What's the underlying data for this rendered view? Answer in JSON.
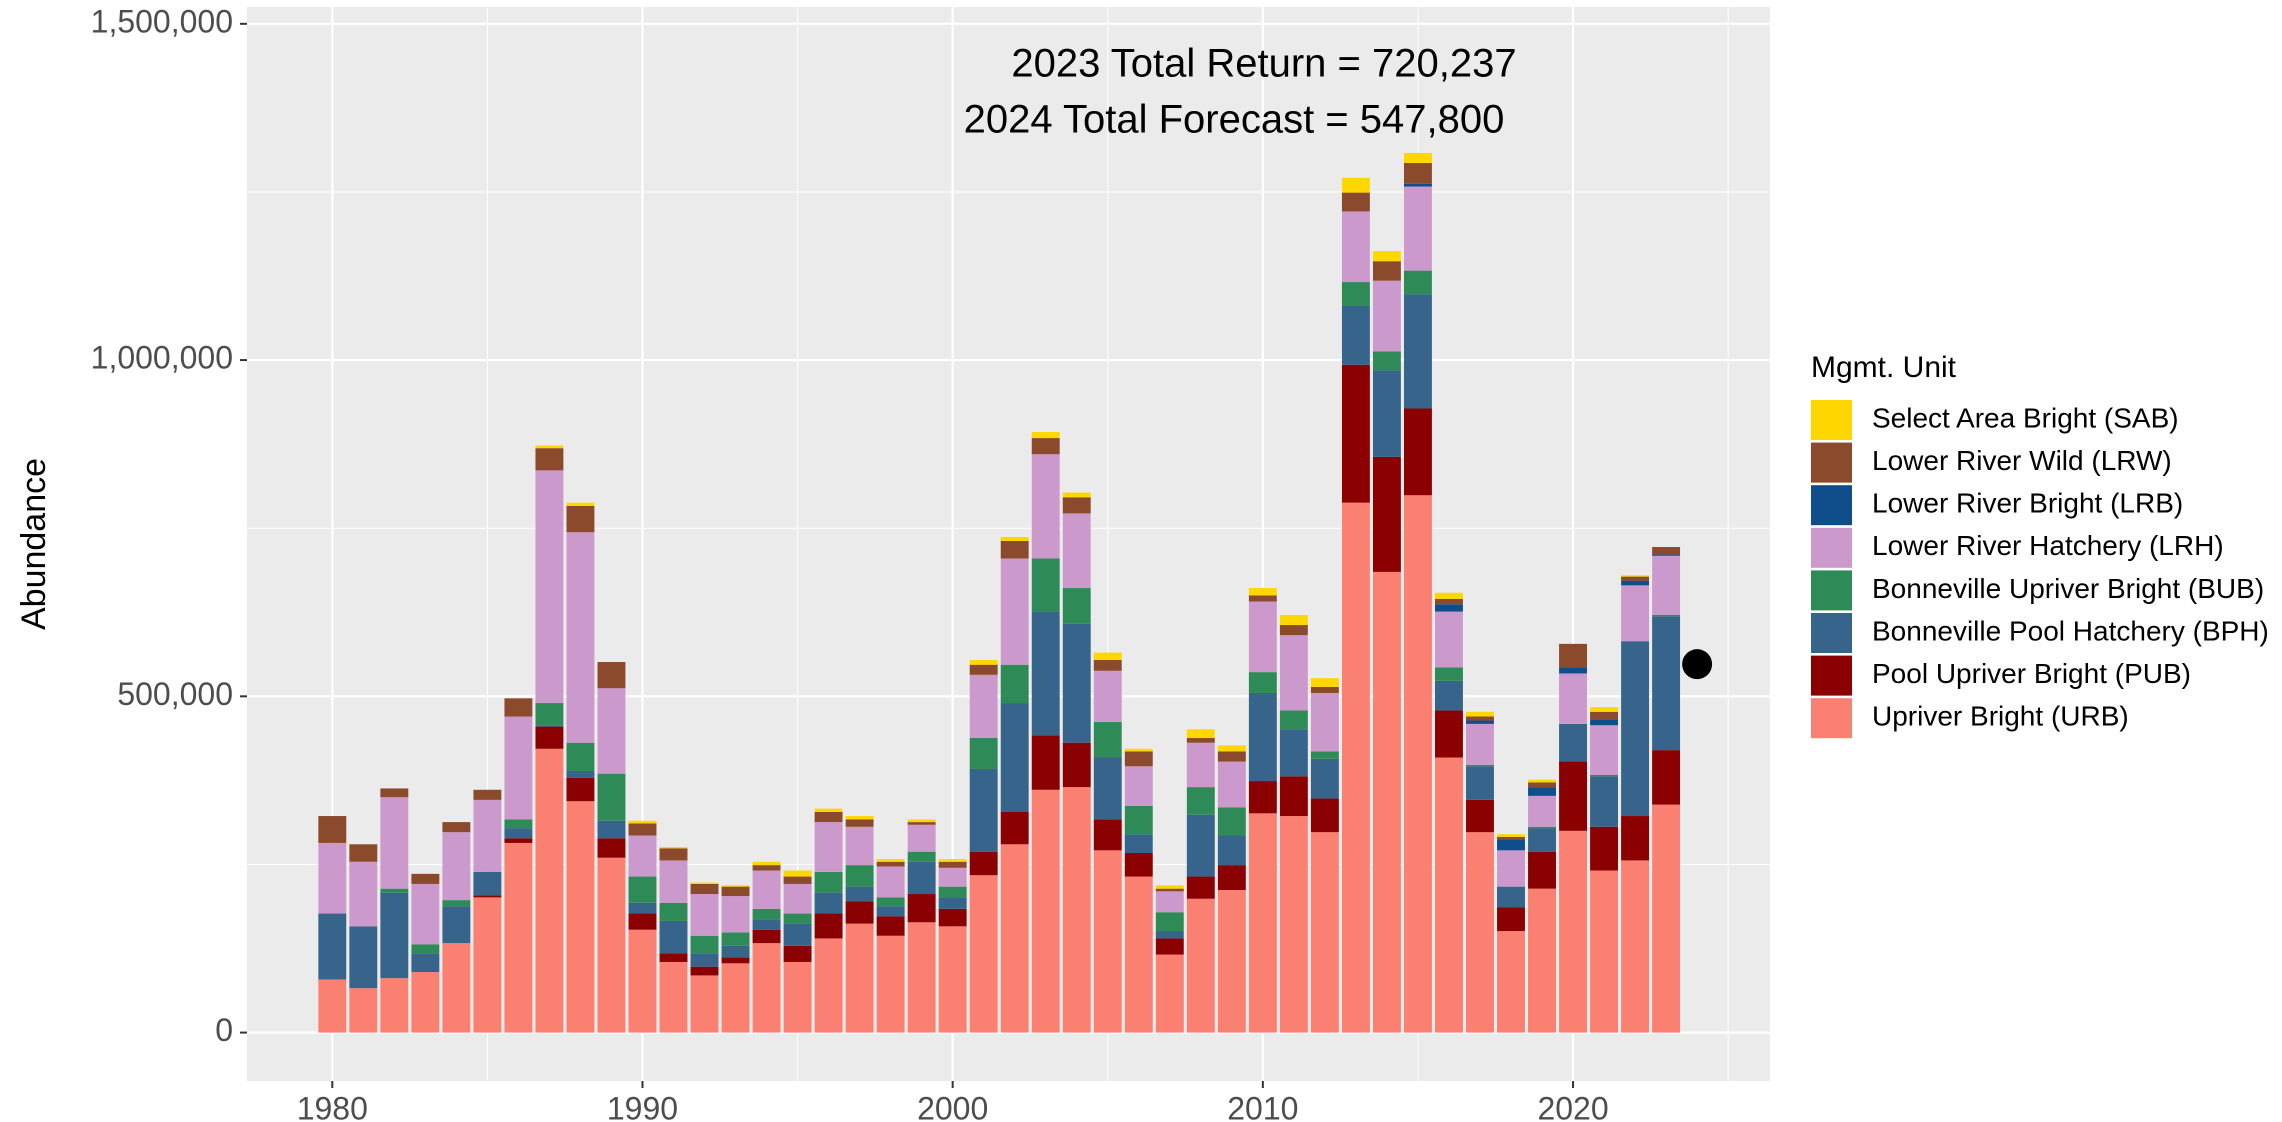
{
  "chart_data": {
    "type": "stacked_bar",
    "annotations": [
      "2023 Total Return = 720,237",
      "2024 Total Forecast = 547,800"
    ],
    "y_label": "Abundance",
    "legend_title": "Mgmt. Unit",
    "x": [
      1980,
      1981,
      1982,
      1983,
      1984,
      1985,
      1986,
      1987,
      1988,
      1989,
      1990,
      1991,
      1992,
      1993,
      1994,
      1995,
      1996,
      1997,
      1998,
      1999,
      2000,
      2001,
      2002,
      2003,
      2004,
      2005,
      2006,
      2007,
      2008,
      2009,
      2010,
      2011,
      2012,
      2013,
      2014,
      2015,
      2016,
      2017,
      2018,
      2019,
      2020,
      2021,
      2022,
      2023
    ],
    "series": [
      {
        "name": "Upriver Bright (URB)",
        "color": "#fa8072",
        "values": [
          79000,
          66000,
          81000,
          90000,
          133000,
          201000,
          282000,
          422000,
          344000,
          260000,
          153000,
          105000,
          85000,
          103000,
          133000,
          105000,
          140000,
          162000,
          144000,
          164000,
          158000,
          234000,
          280000,
          361000,
          365000,
          271000,
          232000,
          116000,
          199000,
          212000,
          326000,
          322000,
          298000,
          788000,
          685000,
          799000,
          409000,
          298000,
          151000,
          214000,
          300000,
          241000,
          256000,
          339000
        ]
      },
      {
        "name": "Pool Upriver Bright (PUB)",
        "color": "#8b0000",
        "values": [
          0,
          0,
          0,
          0,
          0,
          3000,
          7000,
          33000,
          35000,
          29000,
          24000,
          13000,
          13000,
          9000,
          20000,
          24000,
          37000,
          33000,
          29000,
          42000,
          26000,
          35000,
          48000,
          81000,
          66000,
          46000,
          35000,
          24000,
          33000,
          37000,
          48000,
          59000,
          50000,
          205000,
          171000,
          129000,
          70000,
          48000,
          35000,
          55000,
          103000,
          65000,
          66000,
          81000
        ]
      },
      {
        "name": "Bonneville Pool Hatchery (BPH)",
        "color": "#36648b",
        "values": [
          98000,
          92000,
          127000,
          28000,
          55000,
          35000,
          15000,
          2000,
          10000,
          26000,
          16000,
          48000,
          20000,
          17000,
          15000,
          33000,
          31000,
          22000,
          15000,
          48000,
          17000,
          123000,
          162000,
          184000,
          177000,
          92000,
          28000,
          11000,
          92000,
          44000,
          131000,
          70000,
          59000,
          88000,
          129000,
          170000,
          44000,
          50000,
          31000,
          35000,
          56000,
          75000,
          260000,
          199000
        ]
      },
      {
        "name": "Bonneville Upriver Bright (BUB)",
        "color": "#2e8b57",
        "values": [
          0,
          0,
          6000,
          13000,
          9000,
          0,
          13000,
          33000,
          42000,
          70000,
          39000,
          27000,
          26000,
          20000,
          16000,
          15000,
          31000,
          32000,
          13000,
          15000,
          16000,
          46000,
          57000,
          79000,
          53000,
          53000,
          42000,
          28000,
          41000,
          42000,
          31000,
          28000,
          11000,
          35000,
          28000,
          35000,
          20000,
          2000,
          0,
          2000,
          0,
          2000,
          0,
          2000
        ]
      },
      {
        "name": "Lower River Hatchery (LRH)",
        "color": "#cc99cc",
        "values": [
          105000,
          96000,
          136000,
          90000,
          101000,
          107000,
          153000,
          346000,
          313000,
          127000,
          61000,
          63000,
          62000,
          54000,
          57000,
          44000,
          74000,
          57000,
          46000,
          40000,
          28000,
          94000,
          158000,
          155000,
          111000,
          76000,
          59000,
          31000,
          66000,
          68000,
          105000,
          112000,
          87000,
          105000,
          105000,
          125000,
          83000,
          61000,
          54000,
          46000,
          75000,
          74000,
          83000,
          88000
        ]
      },
      {
        "name": "Lower River Bright (LRB)",
        "color": "#104e8b",
        "values": [
          0,
          0,
          0,
          0,
          0,
          0,
          0,
          0,
          0,
          0,
          0,
          0,
          0,
          0,
          0,
          0,
          0,
          0,
          0,
          0,
          0,
          0,
          0,
          0,
          0,
          0,
          0,
          0,
          0,
          0,
          0,
          0,
          0,
          0,
          0,
          4000,
          11000,
          5000,
          16000,
          13000,
          9000,
          9000,
          7000,
          2000
        ]
      },
      {
        "name": "Lower River Wild (LRW)",
        "color": "#8b4a2b",
        "values": [
          40000,
          26000,
          13000,
          15000,
          15000,
          15000,
          27000,
          33000,
          39000,
          39000,
          18000,
          18000,
          15000,
          14000,
          8000,
          11000,
          15000,
          11000,
          7000,
          4000,
          9000,
          15000,
          26000,
          24000,
          24000,
          16000,
          22000,
          4000,
          7000,
          15000,
          9000,
          15000,
          9000,
          28000,
          29000,
          31000,
          8000,
          6000,
          4000,
          7000,
          35000,
          11000,
          6000,
          11000
        ]
      },
      {
        "name": "Select Area Bright (SAB)",
        "color": "#ffd700",
        "values": [
          0,
          0,
          0,
          0,
          0,
          0,
          0,
          4000,
          5000,
          0,
          4000,
          2000,
          2000,
          2000,
          5000,
          9000,
          5000,
          5000,
          4000,
          4000,
          4000,
          7000,
          6000,
          9000,
          7000,
          11000,
          4000,
          5000,
          13000,
          9000,
          11000,
          15000,
          13000,
          22000,
          15000,
          15000,
          9000,
          7000,
          4000,
          4000,
          0,
          7000,
          2000,
          0
        ]
      }
    ],
    "forecast_point": {
      "x": 2024,
      "value": 547800,
      "color": "#000000"
    },
    "xlim": [
      1977.25,
      2026.35
    ],
    "xticks": [
      1980,
      1990,
      2000,
      2010,
      2020
    ],
    "ylim": [
      -72000,
      1525000
    ],
    "yticks": [
      0,
      {
        "value": 500000,
        "label": "500,000"
      },
      {
        "value": 1000000,
        "label": "1,000,000"
      },
      {
        "value": 1500000,
        "label": "1,500,000"
      }
    ],
    "grid": true,
    "legend_position": "right"
  }
}
